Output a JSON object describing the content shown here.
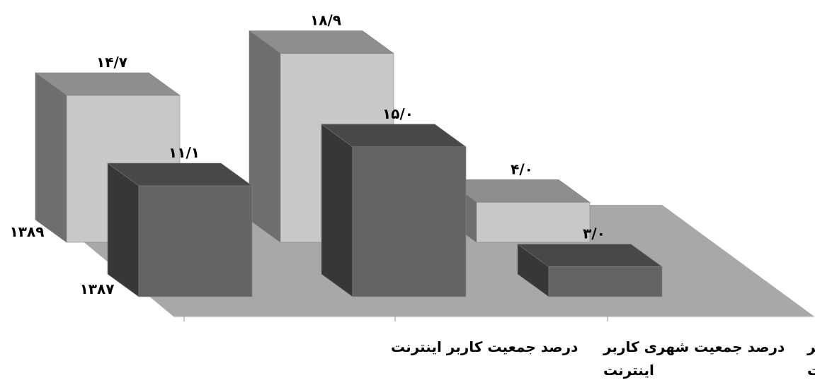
{
  "chart_data": {
    "type": "bar",
    "categories": [
      [
        "درصد جمعیت کاربر اینترنت"
      ],
      [
        "درصد جمعیت شهری کاربر",
        "اینترنت"
      ],
      [
        "درصد جمعیت روستایی کاربر",
        "اینترنت"
      ]
    ],
    "series": [
      {
        "name": "۱۳۸۹",
        "values": [
          14.7,
          18.9,
          4.0
        ],
        "value_labels": [
          "۱۴/۷",
          "۱۸/۹",
          "۴/۰"
        ],
        "color": "#c8c8c8"
      },
      {
        "name": "۱۳۸۷",
        "values": [
          11.1,
          15.0,
          3.0
        ],
        "value_labels": [
          "۱۱/۱",
          "۱۵/۰",
          "۳/۰"
        ],
        "color": "#646464"
      }
    ],
    "title": "",
    "xlabel": "",
    "ylabel": "",
    "ylim": [
      0,
      20
    ],
    "three_d": true,
    "legend": "left, as depth-axis labels",
    "floor_color": "#a8a8a8"
  }
}
